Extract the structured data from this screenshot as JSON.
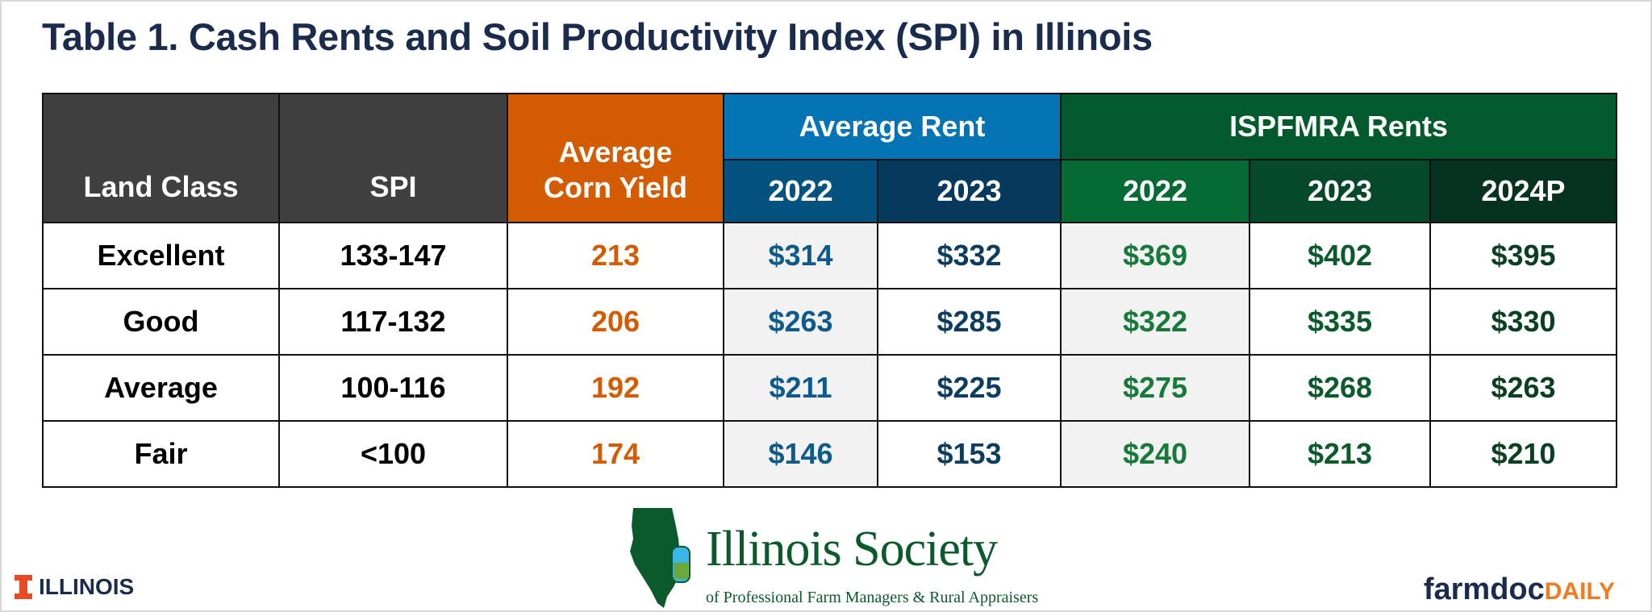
{
  "title": "Table 1. Cash Rents and Soil Productivity Index (SPI) in Illinois",
  "header": {
    "land_class": "Land Class",
    "spi": "SPI",
    "corn_yield_line1": "Average",
    "corn_yield_line2": "Corn Yield",
    "average_rent": "Average Rent",
    "ispfmra_rents": "ISPFMRA Rents",
    "years": [
      "2022",
      "2023",
      "2022",
      "2023",
      "2024P"
    ]
  },
  "rows": [
    {
      "land_class": "Excellent",
      "spi": "133-147",
      "corn_yield": "213",
      "avg_2022": "$314",
      "avg_2023": "$332",
      "isp_2022": "$369",
      "isp_2023": "$402",
      "isp_2024p": "$395"
    },
    {
      "land_class": "Good",
      "spi": "117-132",
      "corn_yield": "206",
      "avg_2022": "$263",
      "avg_2023": "$285",
      "isp_2022": "$322",
      "isp_2023": "$335",
      "isp_2024p": "$330"
    },
    {
      "land_class": "Average",
      "spi": "100-116",
      "corn_yield": "192",
      "avg_2022": "$211",
      "avg_2023": "$225",
      "isp_2022": "$275",
      "isp_2023": "$268",
      "isp_2024p": "$263"
    },
    {
      "land_class": "Fair",
      "spi": "<100",
      "corn_yield": "174",
      "avg_2022": "$146",
      "avg_2023": "$153",
      "isp_2022": "$240",
      "isp_2023": "$213",
      "isp_2024p": "$210"
    }
  ],
  "footer": {
    "illinois": "ILLINOIS",
    "society_title": "Illinois Society",
    "society_subtitle": "of Professional Farm Managers & Rural Appraisers",
    "society_badge": "ISPFMRA",
    "farmdoc_a": "farmdoc",
    "farmdoc_b": "DAILY"
  },
  "colors": {
    "orange": "#d35c03",
    "blue": "#0474b4",
    "green": "#035a2c",
    "gray": "#404040"
  }
}
